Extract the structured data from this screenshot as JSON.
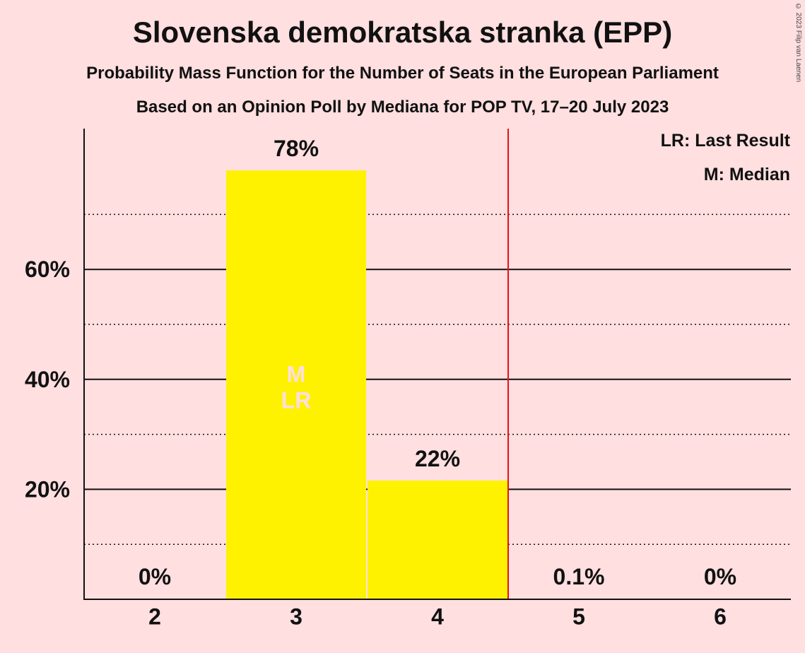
{
  "title": "Slovenska demokratska stranka (EPP)",
  "subtitle_1": "Probability Mass Function for the Number of Seats in the European Parliament",
  "subtitle_2": "Based on an Opinion Poll by Mediana for POP TV, 17–20 July 2023",
  "copyright": "© 2023 Filip van Laenen",
  "legend": {
    "last_result": "LR: Last Result",
    "median": "M: Median"
  },
  "colors": {
    "background": "#FFDFE0",
    "bar": "#FFF200",
    "majority_line": "#E8121A",
    "bar_text": "#FFDFE0"
  },
  "chart_data": {
    "type": "bar",
    "title": "Slovenska demokratska stranka (EPP)",
    "xlabel": "",
    "ylabel": "",
    "categories": [
      "2",
      "3",
      "4",
      "5",
      "6"
    ],
    "values": [
      0,
      78,
      21.6,
      0.1,
      0
    ],
    "data_labels": [
      "0%",
      "78%",
      "22%",
      "0.1%",
      "0%"
    ],
    "ylim": [
      0,
      85
    ],
    "yticks": [
      20,
      40,
      60
    ],
    "ytick_labels": [
      "20%",
      "40%",
      "60%"
    ],
    "minor_gridlines": [
      10,
      30,
      50,
      70
    ],
    "majority_threshold_after": "4",
    "bar_markers": {
      "3": [
        "M",
        "LR"
      ]
    },
    "legend_position": "top-right",
    "grid": true
  }
}
